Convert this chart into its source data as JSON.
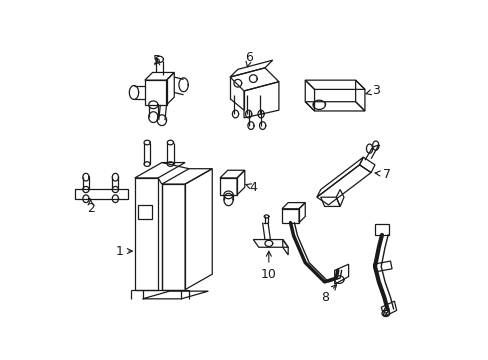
{
  "background_color": "#ffffff",
  "line_color": "#1a1a1a",
  "figsize": [
    4.89,
    3.6
  ],
  "dpi": 100,
  "font_size": 9
}
